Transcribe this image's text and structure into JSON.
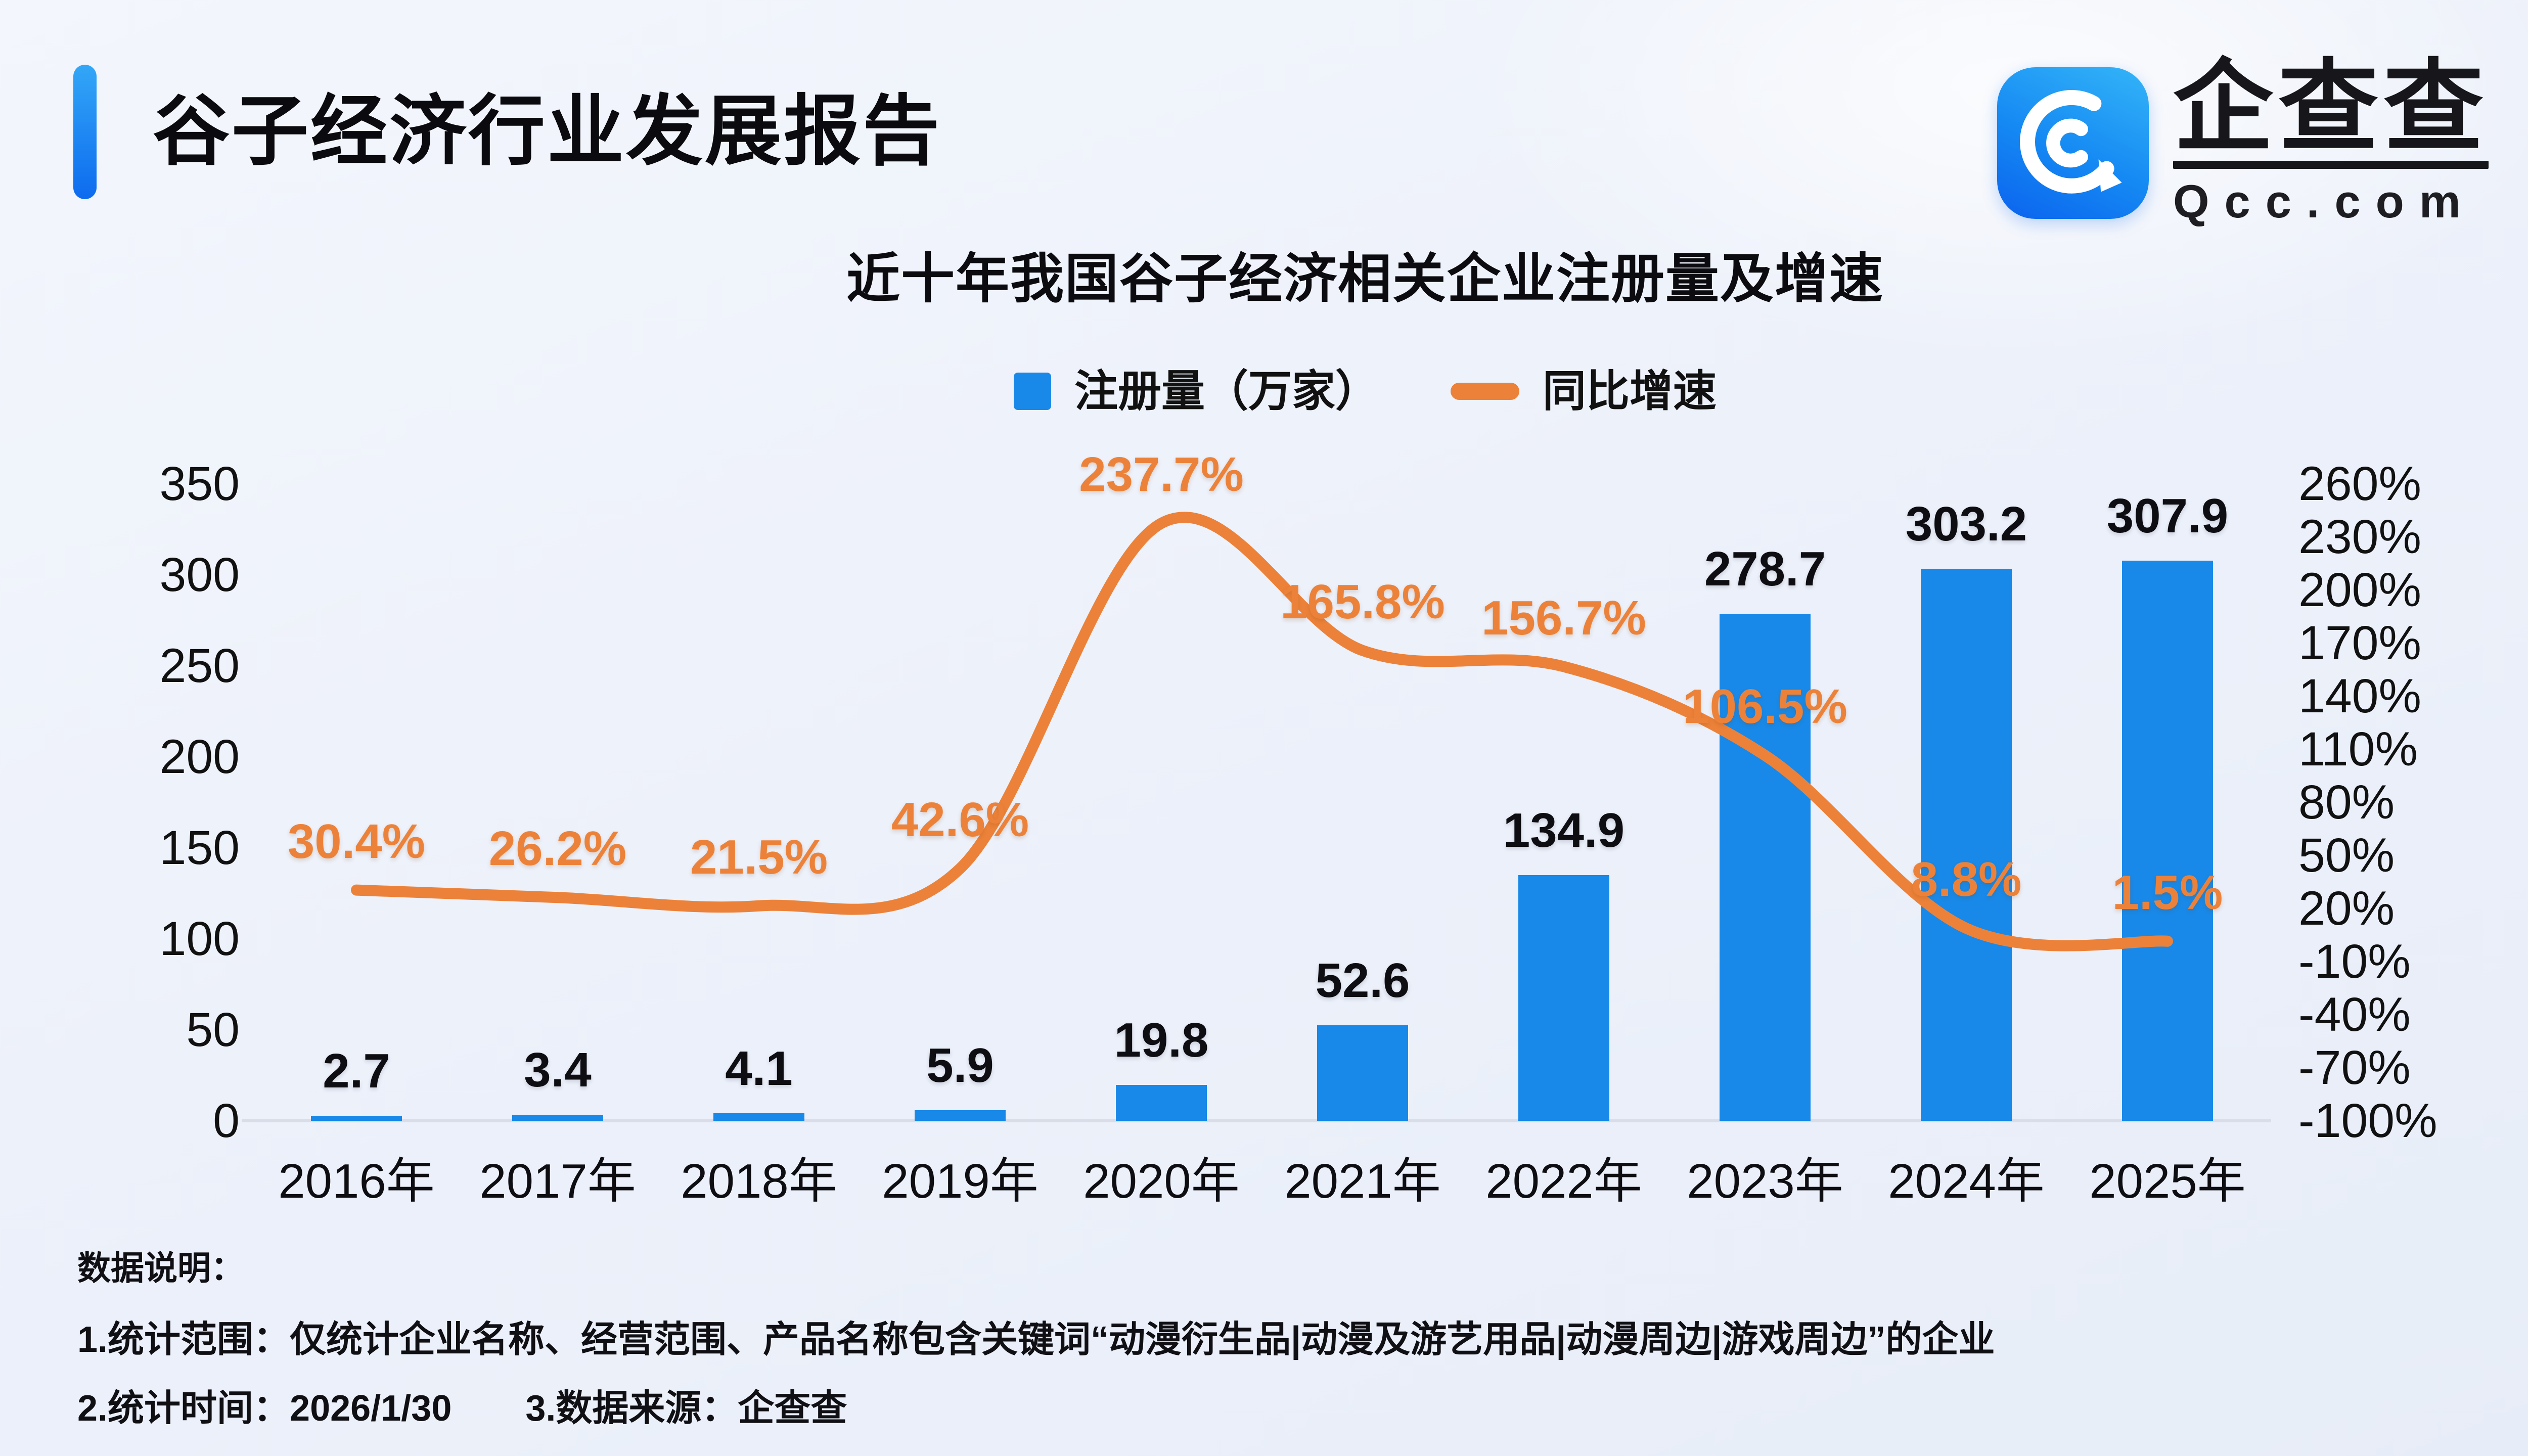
{
  "header": {
    "title": "谷子经济行业发展报告"
  },
  "logo": {
    "name": "企查查",
    "domain": "Qcc.com"
  },
  "chart": {
    "title": "近十年我国谷子经济相关企业注册量及增速",
    "legend": [
      {
        "label": "注册量（万家）",
        "type": "bar"
      },
      {
        "label": "同比增速",
        "type": "line"
      }
    ]
  },
  "chart_data": {
    "type": "bar+line combo",
    "categories": [
      "2016年",
      "2017年",
      "2018年",
      "2019年",
      "2020年",
      "2021年",
      "2022年",
      "2023年",
      "2024年",
      "2025年"
    ],
    "series": [
      {
        "name": "注册量（万家）",
        "type": "bar",
        "axis": "left",
        "values": [
          2.7,
          3.4,
          4.1,
          5.9,
          19.8,
          52.6,
          134.9,
          278.7,
          303.2,
          307.9
        ]
      },
      {
        "name": "同比增速",
        "type": "line",
        "axis": "right",
        "unit": "%",
        "values": [
          30.4,
          26.2,
          21.5,
          42.6,
          237.7,
          165.8,
          156.7,
          106.5,
          8.8,
          1.5
        ]
      }
    ],
    "left_axis": {
      "ticks": [
        350,
        300,
        250,
        200,
        150,
        100,
        50,
        0
      ],
      "range": [
        0,
        350
      ]
    },
    "right_axis": {
      "ticks": [
        260,
        230,
        200,
        170,
        140,
        110,
        80,
        50,
        20,
        -10,
        -40,
        -70,
        -100
      ],
      "range": [
        -100,
        260
      ],
      "unit": "%"
    },
    "grid": false,
    "legend_position": "top"
  },
  "notes": {
    "heading": "数据说明：",
    "scope": "1.统计范围：仅统计企业名称、经营范围、产品名称包含关键词“动漫衍生品|动漫及游艺用品|动漫周边|游戏周边”的企业",
    "time": "2.统计时间：2026/1/30",
    "source": "3.数据来源：企查查"
  },
  "colors": {
    "bar": "#1889E8",
    "line": "#EC8239",
    "accent_top": "#33A7F7",
    "accent_bottom": "#0D6BEF",
    "axis_line": "#D8DDE7",
    "text": "#101014"
  }
}
